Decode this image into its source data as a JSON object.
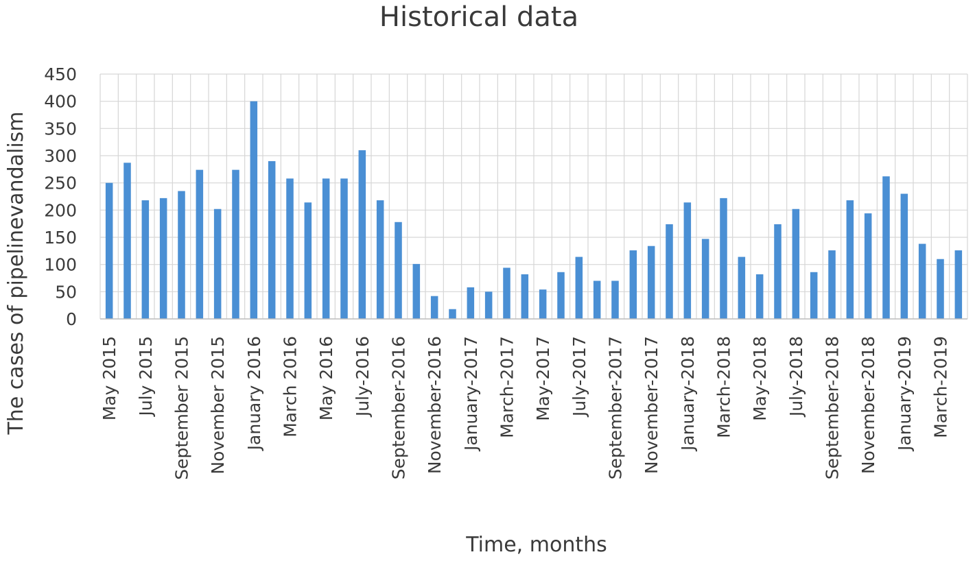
{
  "chart_data": {
    "type": "bar",
    "title": "Historical data",
    "xlabel": "Time, months",
    "ylabel": "The cases of pipelinevandalism",
    "ylim": [
      0,
      450
    ],
    "yticks": [
      0,
      50,
      100,
      150,
      200,
      250,
      300,
      350,
      400,
      450
    ],
    "grid": true,
    "legend": "none",
    "bar_color": "#4a8fd4",
    "categories": [
      "May 2015",
      "June 2015",
      "July 2015",
      "August 2015",
      "September 2015",
      "October 2015",
      "November 2015",
      "December 2015",
      "January 2016",
      "February 2016",
      "March 2016",
      "April 2016",
      "May 2016",
      "June 2016",
      "July-2016",
      "August-2016",
      "September-2016",
      "October-2016",
      "November-2016",
      "December-2016",
      "January-2017",
      "February-2017",
      "March-2017",
      "April-2017",
      "May-2017",
      "June-2017",
      "July-2017",
      "August-2017",
      "September-2017",
      "October-2017",
      "November-2017",
      "December-2017",
      "January-2018",
      "February-2018",
      "March-2018",
      "April-2018",
      "May-2018",
      "June-2018",
      "July-2018",
      "August-2018",
      "September-2018",
      "October-2018",
      "November-2018",
      "December-2018",
      "January-2019",
      "February-2019",
      "March-2019",
      "April-2019"
    ],
    "visible_tick_labels": [
      "May 2015",
      "July 2015",
      "September 2015",
      "November 2015",
      "January 2016",
      "March 2016",
      "May 2016",
      "July-2016",
      "September-2016",
      "November-2016",
      "January-2017",
      "March-2017",
      "May-2017",
      "July-2017",
      "September-2017",
      "November-2017",
      "January-2018",
      "March-2018",
      "May-2018",
      "July-2018",
      "September-2018",
      "November-2018",
      "January-2019",
      "March-2019"
    ],
    "values": [
      250,
      287,
      218,
      222,
      235,
      274,
      202,
      274,
      400,
      290,
      258,
      214,
      258,
      258,
      310,
      218,
      178,
      101,
      42,
      18,
      58,
      50,
      94,
      82,
      54,
      86,
      114,
      70,
      70,
      126,
      134,
      174,
      214,
      147,
      222,
      114,
      82,
      174,
      202,
      86,
      126,
      218,
      194,
      262,
      230,
      138,
      110,
      126
    ]
  }
}
